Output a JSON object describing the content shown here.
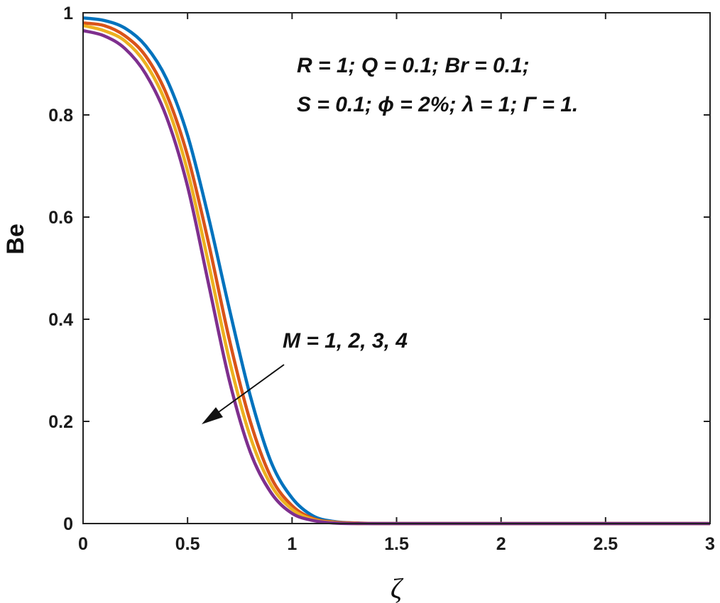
{
  "chart_data": {
    "type": "line",
    "title": "",
    "xlabel": "ζ",
    "ylabel": "Be",
    "xlim": [
      0,
      3
    ],
    "ylim": [
      0,
      1
    ],
    "xticks": [
      "0",
      "0.5",
      "1",
      "1.5",
      "2",
      "2.5",
      "3"
    ],
    "yticks": [
      "0",
      "0.2",
      "0.4",
      "0.6",
      "0.8",
      "1"
    ],
    "grid": false,
    "x": [
      0,
      0.1,
      0.2,
      0.3,
      0.4,
      0.5,
      0.6,
      0.7,
      0.8,
      0.9,
      1.0,
      1.1,
      1.2,
      1.3,
      1.4,
      1.5,
      2.0,
      2.5,
      3.0
    ],
    "series": [
      {
        "name": "M = 1",
        "color": "#0072BD",
        "values": [
          0.99,
          0.985,
          0.97,
          0.935,
          0.87,
          0.76,
          0.6,
          0.42,
          0.25,
          0.12,
          0.05,
          0.015,
          0.004,
          0.001,
          0.0,
          0.0,
          0.0,
          0.0,
          0.0
        ]
      },
      {
        "name": "M = 2",
        "color": "#D95319",
        "values": [
          0.98,
          0.975,
          0.955,
          0.915,
          0.84,
          0.72,
          0.55,
          0.36,
          0.2,
          0.09,
          0.035,
          0.01,
          0.003,
          0.001,
          0.0,
          0.0,
          0.0,
          0.0,
          0.0
        ]
      },
      {
        "name": "M = 3",
        "color": "#EDB120",
        "values": [
          0.975,
          0.965,
          0.945,
          0.9,
          0.82,
          0.69,
          0.51,
          0.32,
          0.17,
          0.075,
          0.028,
          0.008,
          0.002,
          0.0,
          0.0,
          0.0,
          0.0,
          0.0,
          0.0
        ]
      },
      {
        "name": "M = 4",
        "color": "#7E2F8E",
        "values": [
          0.965,
          0.955,
          0.93,
          0.88,
          0.795,
          0.66,
          0.47,
          0.28,
          0.14,
          0.06,
          0.02,
          0.006,
          0.001,
          0.0,
          0.0,
          0.0,
          0.0,
          0.0,
          0.0
        ]
      }
    ],
    "annotations": {
      "params_line1": "R = 1; Q = 0.1; Br = 0.1;",
      "params_line2": "S = 0.1; ϕ = 2%; λ = 1; Γ = 1.",
      "arrow_label": "M = 1, 2, 3, 4"
    }
  }
}
